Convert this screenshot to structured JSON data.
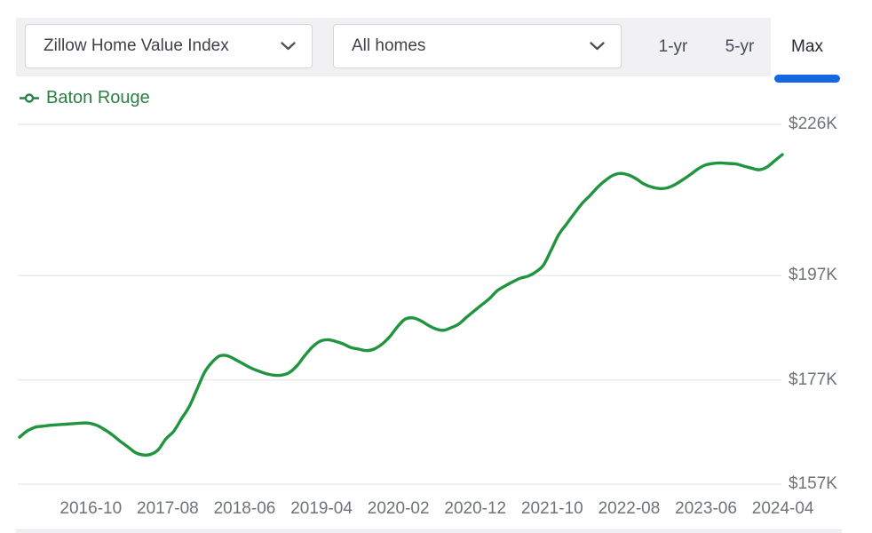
{
  "header": {
    "metric_dropdown": {
      "value": "Zillow Home Value Index"
    },
    "segment_dropdown": {
      "value": "All homes"
    },
    "range_tabs": {
      "items": [
        {
          "label": "1-yr",
          "active": false
        },
        {
          "label": "5-yr",
          "active": false
        },
        {
          "label": "Max",
          "active": true
        }
      ],
      "active_color": "#1667e2"
    }
  },
  "legend": {
    "label": "Baton Rouge",
    "color": "#20943e"
  },
  "chart_data": {
    "type": "line",
    "series_name": "Baton Rouge",
    "metric": "Zillow Home Value Index",
    "segment": "All homes",
    "range": "Max",
    "unit": "USD thousands",
    "interval": "monthly",
    "start_month": "2016-01",
    "end_month": "2024-04",
    "grid": "horizontal-only",
    "legend_position": "top-left",
    "y_axis_side": "right",
    "ylim": [
      155,
      228
    ],
    "y_ticks": [
      {
        "label": "$226K",
        "value": 226
      },
      {
        "label": "$197K",
        "value": 197
      },
      {
        "label": "$177K",
        "value": 177
      },
      {
        "label": "$157K",
        "value": 157
      }
    ],
    "x_tick_labels": [
      "2016-10",
      "2017-08",
      "2018-06",
      "2019-04",
      "2020-02",
      "2020-12",
      "2021-10",
      "2022-08",
      "2023-06",
      "2024-04"
    ],
    "values_k": [
      166.0,
      167.2,
      167.9,
      168.1,
      168.3,
      168.4,
      168.5,
      168.6,
      168.7,
      168.7,
      168.3,
      167.5,
      166.5,
      165.3,
      164.2,
      163.1,
      162.6,
      162.7,
      163.6,
      165.7,
      167.1,
      169.5,
      171.8,
      175.1,
      178.4,
      180.4,
      181.6,
      181.6,
      180.9,
      180.1,
      179.3,
      178.7,
      178.2,
      177.9,
      177.9,
      178.4,
      179.7,
      181.6,
      183.3,
      184.4,
      184.7,
      184.4,
      183.9,
      183.2,
      182.9,
      182.6,
      182.9,
      183.8,
      185.2,
      187.1,
      188.6,
      188.9,
      188.4,
      187.5,
      186.8,
      186.5,
      187.0,
      187.7,
      189.0,
      190.2,
      191.4,
      192.6,
      194.1,
      195.0,
      195.8,
      196.5,
      196.9,
      197.7,
      199.0,
      201.9,
      204.9,
      206.9,
      208.9,
      210.8,
      212.3,
      213.9,
      215.2,
      216.2,
      216.6,
      216.3,
      215.6,
      214.6,
      214.0,
      213.7,
      213.8,
      214.4,
      215.3,
      216.3,
      217.4,
      218.2,
      218.5,
      218.6,
      218.5,
      218.4,
      218.0,
      217.6,
      217.3,
      217.8,
      219.0,
      220.2
    ]
  }
}
